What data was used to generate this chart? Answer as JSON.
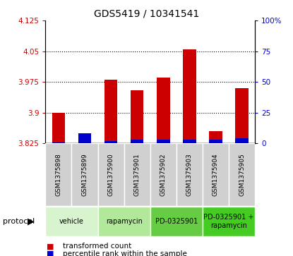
{
  "title": "GDS5419 / 10341541",
  "samples": [
    "GSM1375898",
    "GSM1375899",
    "GSM1375900",
    "GSM1375901",
    "GSM1375902",
    "GSM1375903",
    "GSM1375904",
    "GSM1375905"
  ],
  "transformed_counts": [
    3.9,
    3.825,
    3.98,
    3.955,
    3.985,
    4.055,
    3.855,
    3.96
  ],
  "percentile_ranks": [
    1,
    8,
    2,
    3,
    3,
    3,
    3,
    4
  ],
  "protocol_groups": [
    {
      "label": "vehicle",
      "indices": [
        0,
        1
      ],
      "color": "#d8f4cf"
    },
    {
      "label": "rapamycin",
      "indices": [
        2,
        3
      ],
      "color": "#b2e89a"
    },
    {
      "label": "PD-0325901",
      "indices": [
        4,
        5
      ],
      "color": "#66cc44"
    },
    {
      "label": "PD-0325901 +\nrapamycin",
      "indices": [
        6,
        7
      ],
      "color": "#44cc22"
    }
  ],
  "bar_color_red": "#cc0000",
  "bar_color_blue": "#0000cc",
  "ylim_left": [
    3.825,
    4.125
  ],
  "ylim_right": [
    0,
    100
  ],
  "yticks_left": [
    3.825,
    3.9,
    3.975,
    4.05,
    4.125
  ],
  "yticks_right": [
    0,
    25,
    50,
    75,
    100
  ],
  "ytick_labels_left": [
    "3.825",
    "3.9",
    "3.975",
    "4.05",
    "4.125"
  ],
  "ytick_labels_right": [
    "0",
    "25",
    "50",
    "75",
    "100%"
  ],
  "baseline": 3.825,
  "grid_lines": [
    3.9,
    3.975,
    4.05
  ],
  "legend_items": [
    {
      "label": "transformed count",
      "color": "#cc0000"
    },
    {
      "label": "percentile rank within the sample",
      "color": "#0000cc"
    }
  ],
  "protocol_label": "protocol",
  "sample_bg": "#d0d0d0",
  "plot_bg": "#ffffff"
}
